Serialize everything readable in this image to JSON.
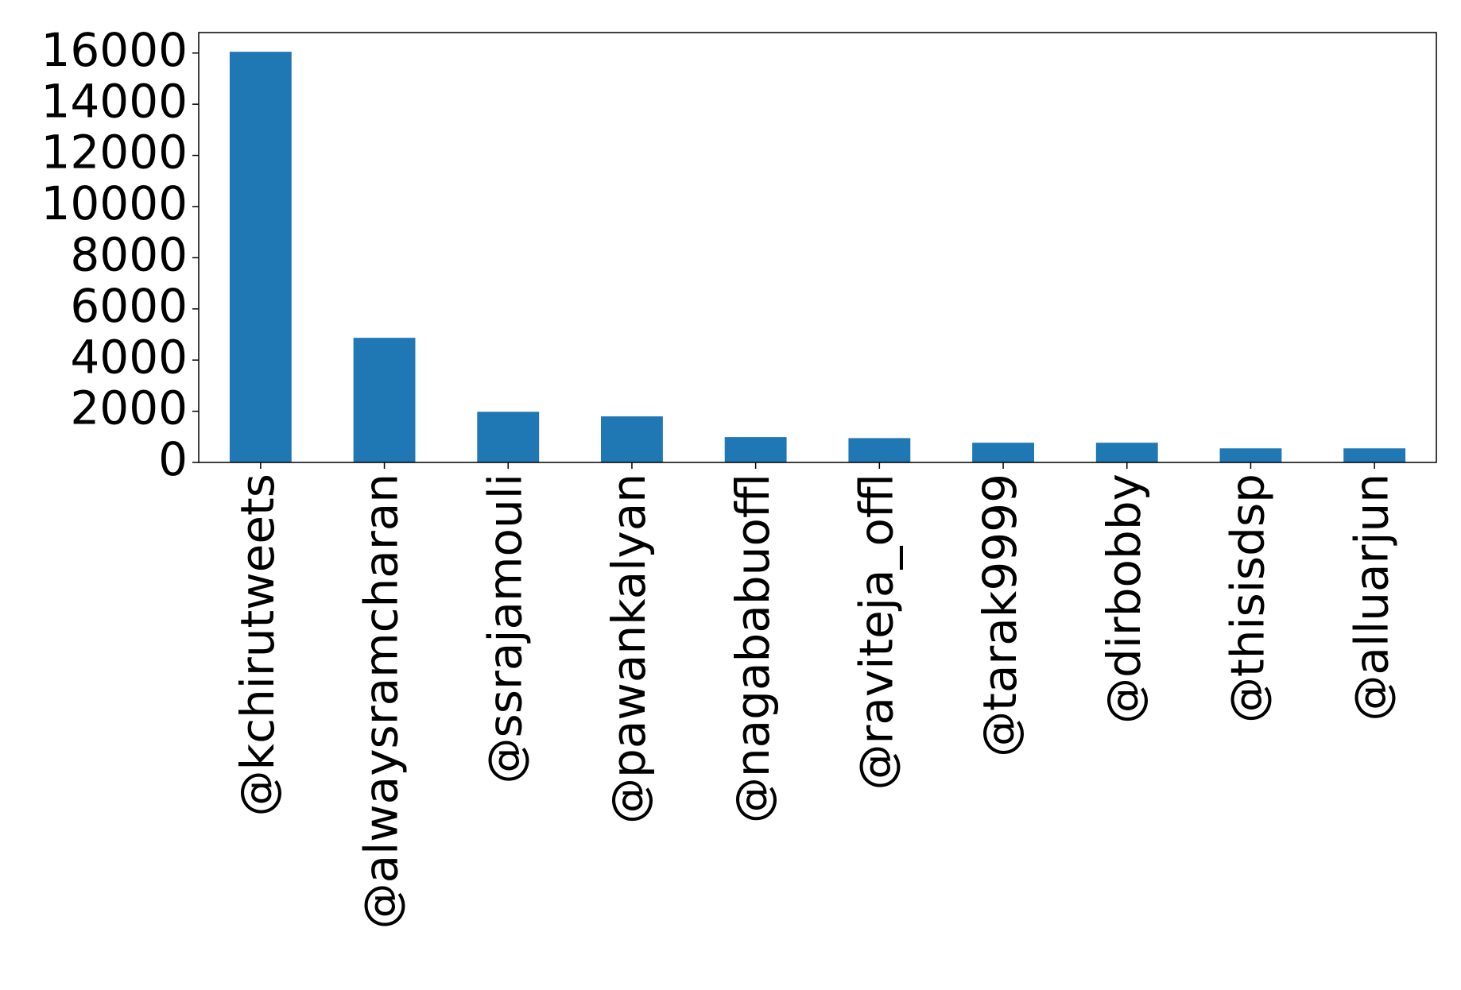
{
  "chart_data": {
    "type": "bar",
    "categories": [
      "@kchirutweets",
      "@alwaysramcharan",
      "@ssrajamouli",
      "@pawankalyan",
      "@nagababuoffl",
      "@raviteja_offl",
      "@tarak9999",
      "@dirbobby",
      "@thisisdsp",
      "@alluarjun"
    ],
    "values": [
      16050,
      4870,
      1980,
      1800,
      990,
      950,
      770,
      770,
      550,
      550
    ],
    "color": "#1f77b4",
    "ylim": [
      0,
      16800
    ],
    "yticks": [
      0,
      2000,
      4000,
      6000,
      8000,
      10000,
      12000,
      14000,
      16000
    ],
    "grid": false
  }
}
